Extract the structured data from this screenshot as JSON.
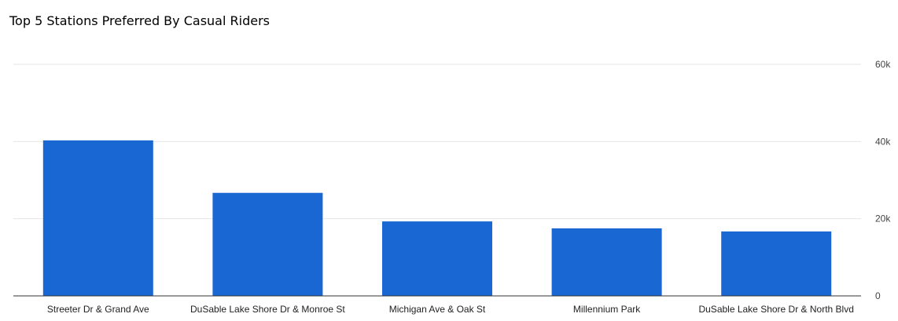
{
  "chart_data": {
    "type": "bar",
    "title": "Top 5 Stations Preferred By Casual Riders",
    "xlabel": "",
    "ylabel": "",
    "categories": [
      "Streeter Dr & Grand Ave",
      "DuSable Lake Shore Dr & Monroe St",
      "Michigan Ave & Oak St",
      "Millennium Park",
      "DuSable Lake Shore Dr & North Blvd"
    ],
    "values": [
      40300,
      26700,
      19300,
      17500,
      16700
    ],
    "ylim": [
      0,
      60000
    ],
    "yticks": [
      0,
      20000,
      40000,
      60000
    ],
    "ytick_labels": [
      "0",
      "20k",
      "40k",
      "60k"
    ],
    "y_axis_side": "right",
    "grid": true,
    "legend": "none",
    "bar_color": "#1967D2",
    "grid_color": "#E6E6E6",
    "axis_color": "#333333"
  }
}
